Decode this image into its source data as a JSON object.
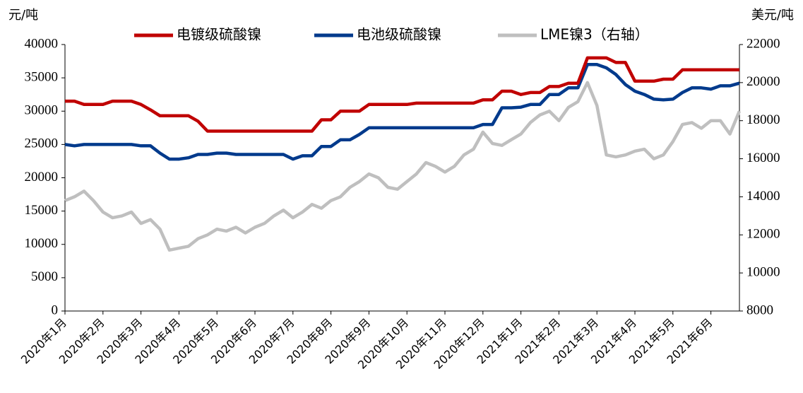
{
  "chart_data": {
    "type": "line",
    "y_axis_label": "元/吨",
    "y2_axis_label": "美元/吨",
    "categories": [
      "2020年1月",
      null,
      null,
      null,
      "2020年2月",
      null,
      null,
      null,
      "2020年3月",
      null,
      null,
      null,
      "2020年4月",
      null,
      null,
      null,
      "2020年5月",
      null,
      null,
      null,
      "2020年6月",
      null,
      null,
      null,
      "2020年7月",
      null,
      null,
      null,
      "2020年8月",
      null,
      null,
      null,
      "2020年9月",
      null,
      null,
      null,
      "2020年10月",
      null,
      null,
      null,
      "2020年11月",
      null,
      null,
      null,
      "2020年12月",
      null,
      null,
      null,
      "2021年1月",
      null,
      null,
      null,
      "2021年2月",
      null,
      null,
      null,
      "2021年3月",
      null,
      null,
      null,
      "2021年4月",
      null,
      null,
      null,
      "2021年5月",
      null,
      null,
      null,
      "2021年6月",
      null,
      null,
      null
    ],
    "series": [
      {
        "name": "电镀级硫酸镍",
        "color": "#c00000",
        "values": [
          31500,
          31500,
          31000,
          31000,
          31000,
          31500,
          31500,
          31500,
          31000,
          30200,
          29300,
          29300,
          29300,
          29300,
          28500,
          27000,
          27000,
          27000,
          27000,
          27000,
          27000,
          27000,
          27000,
          27000,
          27000,
          27000,
          27000,
          28700,
          28700,
          30000,
          30000,
          30000,
          31000,
          31000,
          31000,
          31000,
          31000,
          31200,
          31200,
          31200,
          31200,
          31200,
          31200,
          31200,
          31700,
          31700,
          33000,
          33000,
          32500,
          32800,
          32800,
          33700,
          33700,
          34200,
          34200,
          38000,
          38000,
          38000,
          37300,
          37300,
          34500,
          34500,
          34500,
          34800,
          34800,
          36200,
          36200,
          36200,
          36200,
          36200,
          36200,
          36200
        ]
      },
      {
        "name": "电池级硫酸镍",
        "color": "#003a8c",
        "values": [
          25000,
          24800,
          25000,
          25000,
          25000,
          25000,
          25000,
          25000,
          24800,
          24800,
          23700,
          22800,
          22800,
          23000,
          23500,
          23500,
          23700,
          23700,
          23500,
          23500,
          23500,
          23500,
          23500,
          23500,
          22800,
          23300,
          23300,
          24700,
          24700,
          25700,
          25700,
          26500,
          27500,
          27500,
          27500,
          27500,
          27500,
          27500,
          27500,
          27500,
          27500,
          27500,
          27500,
          27500,
          28000,
          28000,
          30500,
          30500,
          30600,
          31000,
          31000,
          32500,
          32500,
          33500,
          33500,
          37000,
          37000,
          36500,
          35500,
          34000,
          33000,
          32500,
          31800,
          31700,
          31800,
          32800,
          33500,
          33500,
          33300,
          33800,
          33800,
          34200
        ]
      },
      {
        "name": "LME镍3（右轴）",
        "color": "#bfbfbf",
        "axis": "y2",
        "values": [
          13800,
          14000,
          14300,
          13800,
          13200,
          12900,
          13000,
          13200,
          12600,
          12800,
          12300,
          11200,
          11300,
          11400,
          11800,
          12000,
          12300,
          12200,
          12400,
          12100,
          12400,
          12600,
          13000,
          13300,
          12900,
          13200,
          13600,
          13400,
          13800,
          14000,
          14500,
          14800,
          15200,
          15000,
          14500,
          14400,
          14800,
          15200,
          15800,
          15600,
          15300,
          15600,
          16200,
          16500,
          17400,
          16800,
          16700,
          17000,
          17300,
          17900,
          18300,
          18500,
          18000,
          18700,
          19000,
          20000,
          18800,
          16200,
          16100,
          16200,
          16400,
          16500,
          16000,
          16200,
          16900,
          17800,
          17900,
          17600,
          18000,
          18000,
          17300,
          18500
        ]
      }
    ],
    "ylim": [
      0,
      40000
    ],
    "yticks": [
      0,
      5000,
      10000,
      15000,
      20000,
      25000,
      30000,
      35000,
      40000
    ],
    "y2lim": [
      8000,
      22000
    ],
    "y2ticks": [
      8000,
      10000,
      12000,
      14000,
      16000,
      18000,
      20000,
      22000
    ],
    "legend": "top"
  }
}
